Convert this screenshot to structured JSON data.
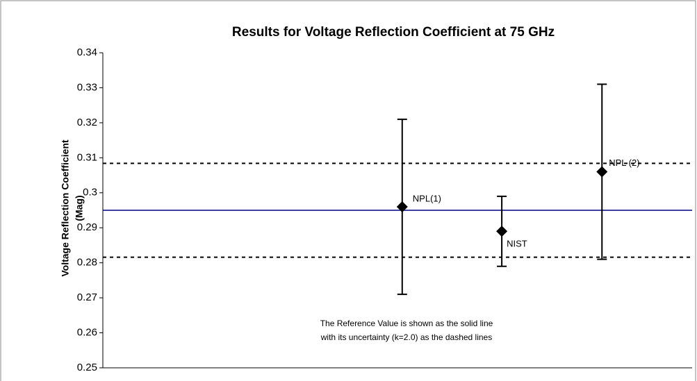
{
  "chart_data": {
    "type": "errorbar",
    "title": "Results for Voltage Reflection Coefficient at 75 GHz",
    "ylabel": [
      "Voltage Reflection Coefficient",
      "(Mag)"
    ],
    "categories": [
      "NPL(1)",
      "NIST",
      "NPL (2)"
    ],
    "series": [
      {
        "color": "#000000",
        "values": [
          0.296,
          0.289,
          0.306
        ],
        "errors": [
          0.025,
          0.01,
          0.025
        ]
      }
    ],
    "reference_value": 0.295,
    "reference_color": "#000080",
    "reference_bounds": [
      0.2816,
      0.3084
    ],
    "annotation": [
      "The Reference Value  is shown as the solid line",
      "with its uncertainty (k=2.0) as the dashed lines"
    ],
    "ylim": [
      0.25,
      0.34
    ],
    "yticks": [
      0.25,
      0.26,
      0.27,
      0.28,
      0.29,
      0.3,
      0.31,
      0.32,
      0.33,
      0.34
    ],
    "grid": false
  }
}
